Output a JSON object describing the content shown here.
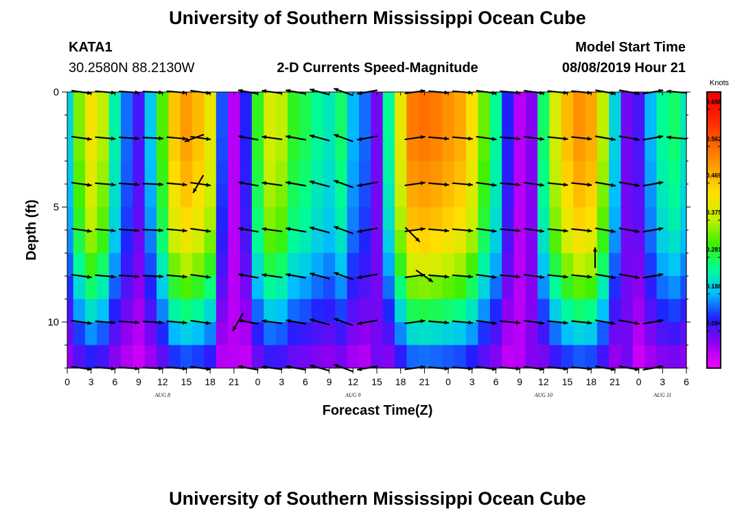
{
  "title_top": "University of Southern Mississippi Ocean Cube",
  "title_bottom": "University of Southern Mississippi Ocean Cube",
  "station": {
    "id": "KATA1",
    "coords": "30.2580N 88.2130W"
  },
  "plot_title": "2-D Currents Speed-Magnitude",
  "model": {
    "label": "Model Start Time",
    "time": "08/08/2019 Hour 21"
  },
  "chart_data": {
    "type": "heatmap",
    "title": "2-D Currents Speed-Magnitude",
    "xlabel": "Forecast Time(Z)",
    "ylabel": "Depth (ft)",
    "xlim": [
      0,
      78
    ],
    "ylim": [
      0,
      12
    ],
    "x_tick_labels": [
      "0",
      "3",
      "6",
      "9",
      "12",
      "15",
      "18",
      "21",
      "0",
      "3",
      "6",
      "9",
      "12",
      "15",
      "18",
      "21",
      "0",
      "3",
      "6",
      "9",
      "12",
      "15",
      "18",
      "21",
      "0",
      "3",
      "6"
    ],
    "y_ticks": [
      0,
      5,
      10
    ],
    "y_tick_labels": [
      "0",
      "5",
      "10"
    ],
    "date_labels": [
      {
        "label": "AUG 8",
        "hour": 12
      },
      {
        "label": "AUG 9",
        "hour": 36
      },
      {
        "label": "AUG 10",
        "hour": 60
      },
      {
        "label": "AUG 11",
        "hour": 75
      }
    ],
    "colorbar": {
      "unit": "Knots",
      "min": 0.0,
      "max": 0.7,
      "ticks": [
        0.094,
        0.188,
        0.281,
        0.375,
        0.469,
        0.562,
        0.656
      ],
      "tick_labels": [
        "0.094",
        "0.188",
        "0.281",
        "0.375",
        "0.469",
        "0.562",
        "0.656"
      ],
      "colors": [
        "#ff00ff",
        "#9000f0",
        "#2020ff",
        "#00c0ff",
        "#00ff90",
        "#40f000",
        "#c8f000",
        "#ffe000",
        "#ffa000",
        "#ff6000",
        "#ff2000",
        "#f00000"
      ]
    },
    "time_profile_hours": [
      0,
      1.5,
      3,
      4.5,
      6,
      7.5,
      9,
      10.5,
      12,
      13.5,
      15,
      16.5,
      18,
      19.5,
      21,
      22.5,
      24,
      25.5,
      27,
      28.5,
      30,
      31.5,
      33,
      34.5,
      36,
      37.5,
      39,
      40.5,
      42,
      43.5,
      45,
      46.5,
      48,
      49.5,
      51,
      52.5,
      54,
      55.5,
      57,
      58.5,
      60,
      61.5,
      63,
      64.5,
      66,
      67.5,
      69,
      70.5,
      72,
      73.5,
      75,
      76.5,
      78
    ],
    "speed_profile_knots": [
      0.2,
      0.33,
      0.41,
      0.36,
      0.23,
      0.15,
      0.1,
      0.19,
      0.31,
      0.45,
      0.49,
      0.46,
      0.4,
      0.14,
      0.04,
      0.12,
      0.29,
      0.38,
      0.36,
      0.29,
      0.27,
      0.24,
      0.22,
      0.26,
      0.18,
      0.15,
      0.08,
      0.24,
      0.4,
      0.52,
      0.53,
      0.52,
      0.5,
      0.48,
      0.42,
      0.32,
      0.24,
      0.12,
      0.04,
      0.07,
      0.26,
      0.38,
      0.46,
      0.5,
      0.48,
      0.36,
      0.2,
      0.08,
      0.1,
      0.18,
      0.24,
      0.26,
      0.22
    ],
    "depth_levels_ft": [
      0.5,
      1.5,
      2.5,
      3.5,
      4.5,
      5.5,
      6.5,
      7.5,
      8.5,
      9.5,
      10.5,
      11.5
    ],
    "depth_factors": [
      1.05,
      1.05,
      1.03,
      1.0,
      0.96,
      0.92,
      0.86,
      0.76,
      0.66,
      0.54,
      0.42,
      0.3
    ],
    "vectors": {
      "depths_ft": [
        0,
        2,
        4,
        6,
        8,
        10,
        12
      ],
      "hours": [
        3,
        6,
        9,
        12,
        15,
        18,
        24,
        27,
        30,
        33,
        36,
        39,
        45,
        48,
        51,
        54,
        57,
        60,
        63,
        66,
        69,
        72,
        75,
        78
      ],
      "angles_deg": [
        -8,
        -5,
        -4,
        -3,
        -5,
        -8,
        170,
        172,
        170,
        165,
        160,
        190,
        8,
        -5,
        -5,
        -8,
        -5,
        -8,
        -6,
        -6,
        -10,
        -10,
        10,
        175
      ],
      "extra": [
        {
          "hour": 16,
          "depth_ft": 2,
          "angle_deg": 200
        },
        {
          "hour": 16.5,
          "depth_ft": 4,
          "angle_deg": 240
        },
        {
          "hour": 21.5,
          "depth_ft": 10,
          "angle_deg": 240
        },
        {
          "hour": 43.5,
          "depth_ft": 6.2,
          "angle_deg": -45
        },
        {
          "hour": 45,
          "depth_ft": 8,
          "angle_deg": -35
        },
        {
          "hour": 66.5,
          "depth_ft": 7.2,
          "angle_deg": 90
        }
      ]
    }
  }
}
